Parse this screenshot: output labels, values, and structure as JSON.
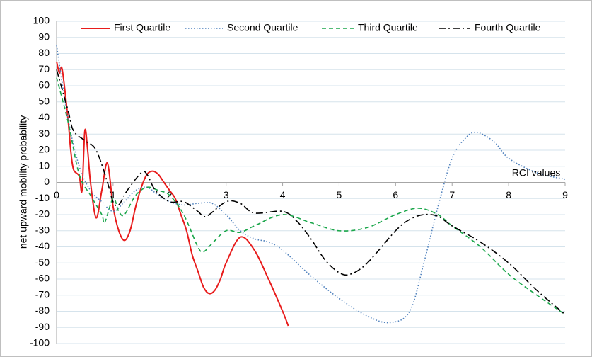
{
  "chart_data": {
    "type": "line",
    "x_label": "RCI values",
    "y_label": "net upward mobility probability",
    "xlim": [
      0,
      9
    ],
    "xticks": [
      0,
      1,
      2,
      3,
      4,
      5,
      6,
      7,
      8,
      9
    ],
    "ylim": [
      -100,
      100
    ],
    "yticks": [
      -100,
      -90,
      -80,
      -70,
      -60,
      -50,
      -40,
      -30,
      -20,
      -10,
      0,
      10,
      20,
      30,
      40,
      50,
      60,
      70,
      80,
      90,
      100
    ],
    "grid": true,
    "legend": "top",
    "series": [
      {
        "name": "First Quartile",
        "color": "#e81c1c",
        "dash": "solid",
        "x": [
          0,
          0.05,
          0.1,
          0.2,
          0.25,
          0.3,
          0.4,
          0.45,
          0.5,
          0.55,
          0.6,
          0.7,
          0.8,
          0.9,
          1.0,
          1.1,
          1.2,
          1.3,
          1.4,
          1.5,
          1.6,
          1.7,
          1.8,
          1.9,
          2.0,
          2.1,
          2.2,
          2.3,
          2.4,
          2.5,
          2.6,
          2.7,
          2.8,
          2.9,
          3.0,
          3.25,
          3.5,
          3.75,
          4.0,
          4.1
        ],
        "values": [
          75,
          68,
          70,
          40,
          20,
          8,
          4,
          -5,
          32,
          20,
          0,
          -22,
          -5,
          12,
          -15,
          -30,
          -36,
          -30,
          -15,
          -3,
          5,
          7,
          5,
          0,
          -5,
          -10,
          -20,
          -30,
          -45,
          -55,
          -65,
          -69,
          -67,
          -60,
          -50,
          -34,
          -42,
          -60,
          -80,
          -89
        ]
      },
      {
        "name": "Second Quartile",
        "color": "#4f81bd",
        "dash": "dotted",
        "x": [
          0,
          0.2,
          0.4,
          0.6,
          0.8,
          1.0,
          1.2,
          1.4,
          1.6,
          1.8,
          2.0,
          2.25,
          2.5,
          2.75,
          3.0,
          3.25,
          3.5,
          3.75,
          4.0,
          4.5,
          5.0,
          5.5,
          5.9,
          6.25,
          6.5,
          6.75,
          7.0,
          7.25,
          7.45,
          7.75,
          8.0,
          8.5,
          9.0
        ],
        "values": [
          85,
          40,
          10,
          -5,
          -12,
          -18,
          -12,
          -5,
          -3,
          -8,
          -12,
          -14,
          -13,
          -13,
          -20,
          -30,
          -35,
          -37,
          -42,
          -58,
          -72,
          -83,
          -87,
          -80,
          -50,
          -15,
          15,
          28,
          31,
          25,
          15,
          6,
          2
        ]
      },
      {
        "name": "Third Quartile",
        "color": "#1aa64a",
        "dash": "dashed",
        "x": [
          0,
          0.2,
          0.4,
          0.6,
          0.8,
          0.85,
          1.0,
          1.1,
          1.2,
          1.4,
          1.6,
          1.8,
          2.0,
          2.25,
          2.5,
          2.6,
          2.75,
          3.0,
          3.25,
          3.5,
          4.0,
          4.5,
          5.0,
          5.5,
          6.0,
          6.4,
          6.75,
          7.0,
          7.5,
          8.0,
          8.5,
          9.0
        ],
        "values": [
          65,
          38,
          5,
          -8,
          -20,
          -25,
          -10,
          -18,
          -20,
          -8,
          -3,
          -5,
          -8,
          -20,
          -40,
          -43,
          -38,
          -30,
          -31,
          -27,
          -20,
          -25,
          -30,
          -28,
          -20,
          -16,
          -20,
          -27,
          -40,
          -57,
          -70,
          -82
        ]
      },
      {
        "name": "Fourth Quartile",
        "color": "#000000",
        "dash": "dashdot",
        "x": [
          0,
          0.2,
          0.3,
          0.5,
          0.7,
          0.9,
          1.0,
          1.1,
          1.25,
          1.5,
          1.6,
          1.75,
          2.0,
          2.25,
          2.5,
          2.65,
          3.0,
          3.25,
          3.5,
          4.0,
          4.25,
          4.5,
          4.75,
          5.0,
          5.2,
          5.5,
          6.0,
          6.25,
          6.5,
          6.75,
          7.0,
          7.5,
          8.0,
          8.5,
          9.0
        ],
        "values": [
          70,
          45,
          32,
          26,
          20,
          0,
          -12,
          -14,
          -5,
          6,
          5,
          -5,
          -12,
          -12,
          -18,
          -21,
          -12,
          -13,
          -19,
          -18,
          -24,
          -35,
          -48,
          -56,
          -57,
          -50,
          -30,
          -23,
          -20,
          -21,
          -27,
          -37,
          -50,
          -67,
          -82
        ]
      }
    ]
  }
}
